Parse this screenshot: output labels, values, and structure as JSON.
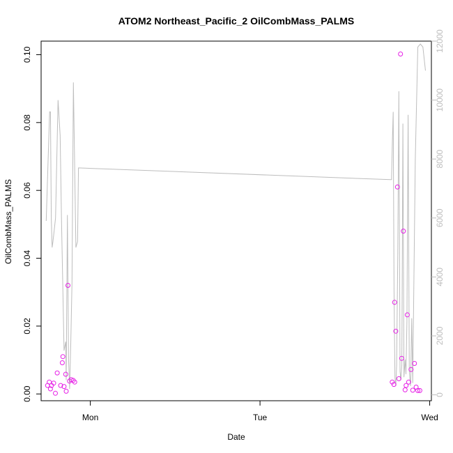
{
  "chart_data": {
    "type": "scatter",
    "title": "ATOM2 Northeast_Pacific_2 OilCombMass_PALMS",
    "xlabel": "Date",
    "ylabel": "OilCombMass_PALMS",
    "x_ticks": [
      "Mon",
      "Tue",
      "Wed"
    ],
    "x_tick_days": [
      1,
      2,
      3
    ],
    "xlim": [
      0.71,
      3.01
    ],
    "ylim": [
      -0.002,
      0.104
    ],
    "y_ticks": [
      0.0,
      0.02,
      0.04,
      0.06,
      0.08,
      0.1
    ],
    "y_tick_labels": [
      "0.00",
      "0.02",
      "0.04",
      "0.06",
      "0.08",
      "0.10"
    ],
    "y2lim": [
      -200,
      12000
    ],
    "y2_ticks": [
      0,
      2000,
      4000,
      6000,
      8000,
      10000,
      12000
    ],
    "y2_tick_labels": [
      "0",
      "2000",
      "4000",
      "6000",
      "8000",
      "10000",
      "12000"
    ],
    "grid": false,
    "colors": {
      "points": "#e61ee6",
      "line": "#bdbdbd",
      "axis": "#000000",
      "right_axis": "#bdbdbd"
    },
    "series": [
      {
        "type": "scatter",
        "axis": "left",
        "x": [
          0.748,
          0.758,
          0.765,
          0.771,
          0.784,
          0.794,
          0.805,
          0.825,
          0.835,
          0.838,
          0.845,
          0.855,
          0.858,
          0.868,
          0.877,
          0.887,
          0.899,
          0.908,
          2.779,
          2.789,
          2.793,
          2.8,
          2.81,
          2.818,
          2.828,
          2.835,
          2.845,
          2.855,
          2.861,
          2.868,
          2.876,
          2.89,
          2.9,
          2.91,
          2.92,
          2.93,
          2.942
        ],
        "y": [
          0.0025,
          0.0035,
          0.0015,
          0.0025,
          0.0032,
          0.0002,
          0.0062,
          0.0025,
          0.0092,
          0.011,
          0.0022,
          0.0058,
          0.0008,
          0.032,
          0.0038,
          0.0042,
          0.004,
          0.0035,
          0.0035,
          0.0028,
          0.027,
          0.0185,
          0.061,
          0.0045,
          0.1002,
          0.0105,
          0.048,
          0.0012,
          0.0025,
          0.0233,
          0.0035,
          0.0072,
          0.0011,
          0.009,
          0.002,
          0.001,
          0.001
        ]
      },
      {
        "type": "line",
        "axis": "right",
        "x": [
          0.74,
          0.76,
          0.765,
          0.77,
          0.775,
          0.78,
          0.795,
          0.81,
          0.822,
          0.83,
          0.845,
          0.855,
          0.858,
          0.865,
          0.872,
          0.878,
          0.885,
          0.892,
          0.9,
          0.915,
          0.92,
          0.925,
          0.93,
          2.77,
          2.775,
          2.78,
          2.785,
          2.79,
          2.795,
          2.8,
          2.805,
          2.812,
          2.818,
          2.825,
          2.83,
          2.836,
          2.842,
          2.848,
          2.855,
          2.86,
          2.866,
          2.873,
          2.88,
          2.887,
          2.894,
          2.9,
          2.915,
          2.93,
          2.945,
          2.96,
          2.975
        ],
        "y": [
          5900,
          9600,
          9600,
          6000,
          5000,
          5200,
          6000,
          10000,
          8800,
          6000,
          1500,
          1800,
          500,
          6100,
          1200,
          200,
          1800,
          3800,
          10600,
          5000,
          5100,
          5200,
          7700,
          7300,
          7300,
          8600,
          9600,
          3500,
          600,
          300,
          1000,
          4800,
          10300,
          800,
          500,
          1000,
          9200,
          600,
          1200,
          700,
          2500,
          9500,
          800,
          300,
          2600,
          400,
          8000,
          11800,
          11900,
          11800,
          11000
        ]
      }
    ]
  }
}
